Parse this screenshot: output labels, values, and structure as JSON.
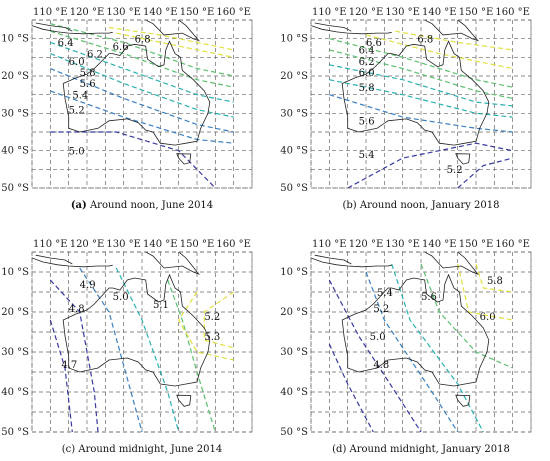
{
  "panels": [
    {
      "id": "a",
      "caption_letter": "(a)",
      "caption_text": " Around noon, June 2014",
      "lon_labels": [
        "110 °E",
        "120 °E",
        "130 °E",
        "140 °E",
        "150 °E",
        "160 °E"
      ],
      "lat_labels": [
        "10 °S",
        "20 °S",
        "30 °S",
        "40 °S",
        "50 °S"
      ],
      "contour_labels": [
        "6.4",
        "6.6",
        "6.8",
        "6.2",
        "6.0",
        "5.8",
        "5.6",
        "5.4",
        "5.2",
        "5.0"
      ]
    },
    {
      "id": "b",
      "caption_letter": "",
      "caption_text": "(b)  Around noon, January 2018",
      "lon_labels": [
        "110 °E",
        "120 °E",
        "130 °E",
        "140 °E",
        "150 °E",
        "160 °E"
      ],
      "lat_labels": [
        "10 °S",
        "20 °S",
        "30 °S",
        "40 °S",
        "50 °S"
      ],
      "contour_labels": [
        "6.8",
        "6.6",
        "6.4",
        "6.2",
        "6.0",
        "5.8",
        "5.6",
        "5.4",
        "5.2"
      ]
    },
    {
      "id": "c",
      "caption_letter": "",
      "caption_text": "(c)  Around midnight, June 2014",
      "lon_labels": [
        "110 °E",
        "120 °E",
        "130 °E",
        "140 °E",
        "150 °E",
        "160 °E"
      ],
      "lat_labels": [
        "10 °S",
        "20 °S",
        "30 °S",
        "40 °S",
        "50 °S"
      ],
      "contour_labels": [
        "4.9",
        "5.0",
        "4.8",
        "5.1",
        "5.2",
        "5.3",
        "4.7"
      ]
    },
    {
      "id": "d",
      "caption_letter": "",
      "caption_text": "(d) Around midnight,  January 2018",
      "lon_labels": [
        "110 °E",
        "120 °E",
        "130 °E",
        "140 °E",
        "150 °E",
        "160 °E"
      ],
      "lat_labels": [
        "10 °S",
        "20 °S",
        "30 °S",
        "40 °S",
        "50 °S"
      ],
      "contour_labels": [
        "5.4",
        "5.6",
        "5.8",
        "6.0",
        "5.2",
        "5.0",
        "4.8"
      ]
    }
  ],
  "colors": {
    "level_low": "#3a3aa0",
    "level_midlow": "#3a7fc0",
    "level_mid": "#2ab0b0",
    "level_midhigh": "#5cc070",
    "level_high": "#e0e040"
  }
}
